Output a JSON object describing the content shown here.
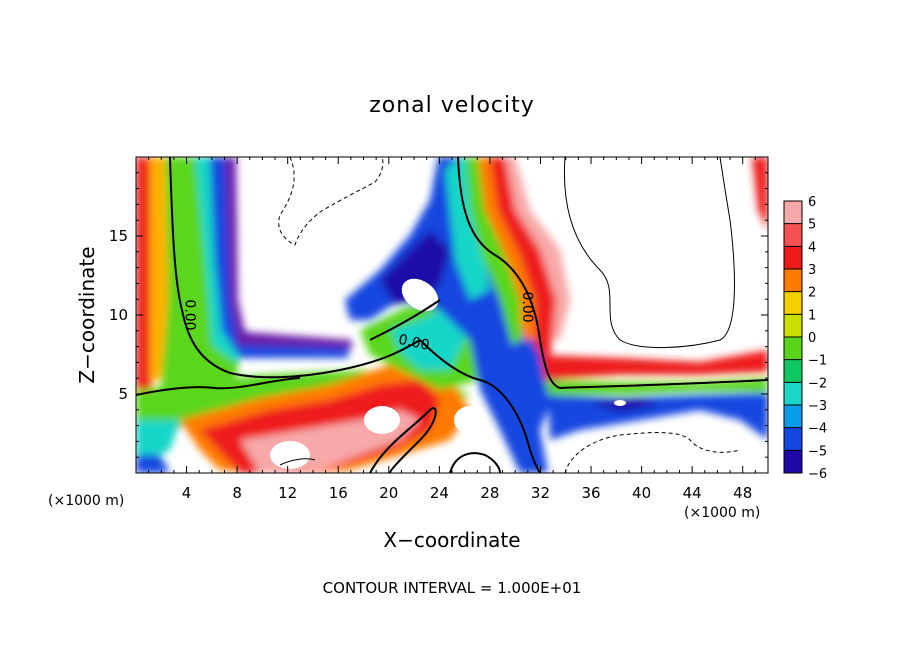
{
  "chart_data": {
    "type": "heatmap",
    "title": "zonal velocity",
    "xlabel": "X−coordinate",
    "ylabel": "Z−coordinate",
    "x_unit_label": "(×1000 m)",
    "x_unit_label_right": "(×1000 m)",
    "xlim": [
      0,
      50
    ],
    "ylim": [
      0,
      20
    ],
    "x_ticks": [
      4,
      8,
      12,
      16,
      20,
      24,
      28,
      32,
      36,
      40,
      44,
      48
    ],
    "y_ticks": [
      5,
      10,
      15
    ],
    "footer": "CONTOUR INTERVAL = 1.000E+01",
    "contour_labels": [
      {
        "text": "0.00",
        "x": 4.3,
        "y": 10.0,
        "rotate": 90
      },
      {
        "text": "0.00",
        "x": 22.0,
        "y": 8.3,
        "rotate": 12
      },
      {
        "text": "0.00",
        "x": 31.0,
        "y": 10.5,
        "rotate": 90
      }
    ],
    "colorbar": {
      "levels": [
        6,
        5,
        4,
        3,
        2,
        1,
        0,
        -1,
        -2,
        -3,
        -4,
        -5,
        -6
      ],
      "level_labels": [
        "6",
        "5",
        "4",
        "3",
        "2",
        "1",
        "0",
        "−1",
        "−2",
        "−3",
        "−4",
        "−5",
        "−6"
      ],
      "colors": [
        "#f7a8a8",
        "#f75050",
        "#ee1a1a",
        "#ff7a00",
        "#f5cf00",
        "#c9e000",
        "#5ad61a",
        "#10c860",
        "#19d6c8",
        "#0a9ee8",
        "#1446e0",
        "#1e0aa8",
        "#6a1ea8"
      ]
    }
  }
}
